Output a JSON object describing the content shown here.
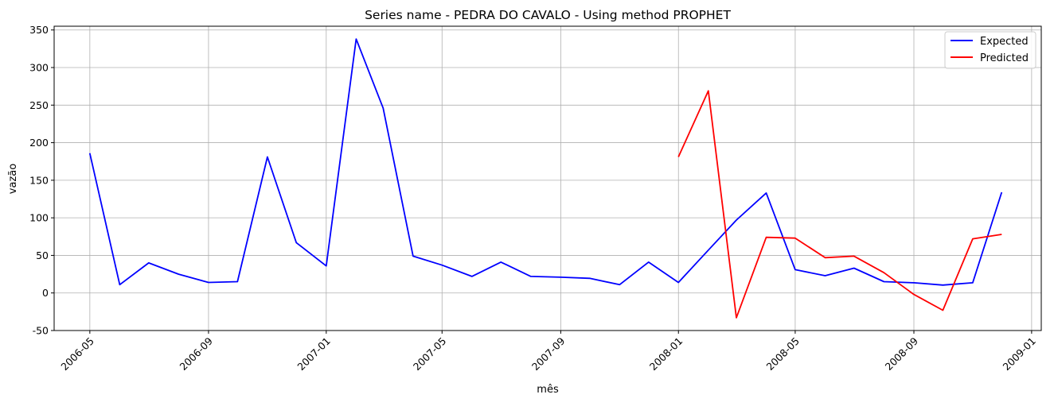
{
  "chart_data": {
    "type": "line",
    "title": "Series name - PEDRA DO CAVALO - Using method PROPHET",
    "xlabel": "mês",
    "ylabel": "vazão",
    "ylim": [
      -50,
      355
    ],
    "xlim": [
      "2006-03-25",
      "2009-01-11"
    ],
    "yticks": [
      -50,
      0,
      50,
      100,
      150,
      200,
      250,
      300,
      350
    ],
    "xticks": [
      "2006-05",
      "2006-09",
      "2007-01",
      "2007-05",
      "2007-09",
      "2008-01",
      "2008-05",
      "2008-09",
      "2009-01"
    ],
    "grid": true,
    "legend_position": "top-right",
    "series": [
      {
        "name": "Expected",
        "color": "#0000ff",
        "x": [
          "2006-05-01",
          "2006-06-01",
          "2006-07-01",
          "2006-08-01",
          "2006-09-01",
          "2006-10-01",
          "2006-11-01",
          "2006-12-01",
          "2007-01-01",
          "2007-02-01",
          "2007-03-01",
          "2007-04-01",
          "2007-05-01",
          "2007-06-01",
          "2007-07-01",
          "2007-08-01",
          "2007-09-01",
          "2007-10-01",
          "2007-11-01",
          "2007-12-01",
          "2008-01-01",
          "2008-02-01",
          "2008-03-01",
          "2008-04-01",
          "2008-05-01",
          "2008-06-01",
          "2008-07-01",
          "2008-08-01",
          "2008-09-01",
          "2008-10-01",
          "2008-11-01",
          "2008-12-01"
        ],
        "values": [
          186,
          11,
          40,
          25,
          14,
          15,
          181,
          67,
          36,
          338,
          246,
          49,
          37,
          22,
          41,
          22,
          21,
          19.5,
          11,
          41,
          14,
          57,
          97,
          133,
          31,
          23,
          33,
          15,
          13.5,
          10.5,
          13.5,
          134
        ]
      },
      {
        "name": "Predicted",
        "color": "#ff0000",
        "x": [
          "2008-01-01",
          "2008-02-01",
          "2008-03-01",
          "2008-04-01",
          "2008-05-01",
          "2008-06-01",
          "2008-07-01",
          "2008-08-01",
          "2008-09-01",
          "2008-10-01",
          "2008-11-01",
          "2008-12-01"
        ],
        "values": [
          181,
          269,
          -33,
          74,
          73,
          47,
          49,
          27,
          -2,
          -23,
          72,
          78
        ]
      }
    ]
  }
}
